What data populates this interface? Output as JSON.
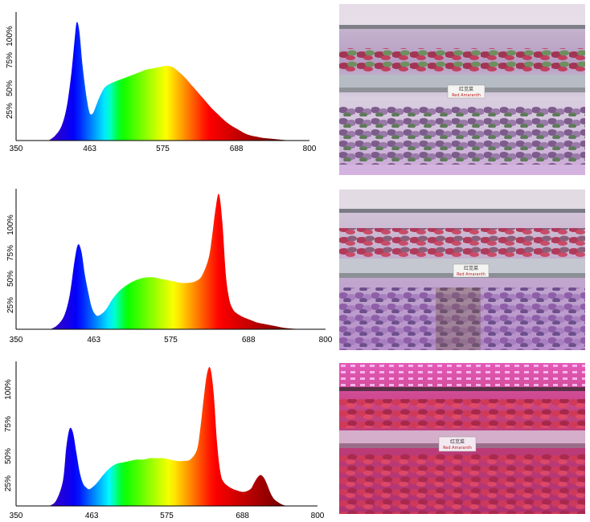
{
  "chart_data": [
    {
      "type": "area",
      "x_ticks": [
        350,
        463,
        575,
        688,
        800
      ],
      "y_ticks": [
        "25%",
        "50%",
        "75%",
        "100%"
      ],
      "xlim": [
        350,
        800
      ],
      "ylim": [
        0,
        100
      ],
      "x": [
        400,
        410,
        420,
        428,
        435,
        440,
        443,
        447,
        452,
        458,
        463,
        468,
        472,
        478,
        485,
        492,
        500,
        510,
        520,
        530,
        540,
        550,
        560,
        570,
        580,
        590,
        600,
        610,
        620,
        630,
        640,
        650,
        660,
        670,
        680,
        690,
        700,
        710,
        720,
        730,
        740,
        750,
        760,
        770,
        780
      ],
      "values": [
        0,
        4,
        12,
        28,
        55,
        82,
        95,
        88,
        60,
        35,
        22,
        22,
        27,
        35,
        42,
        45,
        47,
        49,
        51,
        53,
        55,
        57,
        58,
        59,
        60,
        59,
        55,
        50,
        44,
        38,
        32,
        26,
        21,
        16,
        12,
        9,
        6,
        4,
        3,
        2,
        1.5,
        1,
        0.5,
        0.2,
        0
      ]
    },
    {
      "type": "area",
      "x_ticks": [
        350,
        463,
        575,
        688,
        800
      ],
      "y_ticks": [
        "25%",
        "50%",
        "75%",
        "100%"
      ],
      "xlim": [
        350,
        800
      ],
      "ylim": [
        0,
        100
      ],
      "x": [
        400,
        410,
        420,
        428,
        435,
        440,
        445,
        450,
        455,
        460,
        465,
        470,
        480,
        490,
        500,
        510,
        520,
        530,
        540,
        550,
        560,
        570,
        580,
        590,
        600,
        610,
        620,
        630,
        635,
        640,
        645,
        650,
        655,
        660,
        665,
        670,
        680,
        690,
        700,
        710,
        720,
        730,
        740,
        750,
        760,
        775
      ],
      "values": [
        0,
        3,
        10,
        25,
        50,
        62,
        57,
        40,
        27,
        16,
        11,
        10,
        14,
        22,
        28,
        32,
        35,
        37,
        38,
        38,
        37,
        36,
        35,
        34,
        34,
        35,
        39,
        52,
        68,
        88,
        99,
        78,
        40,
        22,
        15,
        12,
        9,
        7,
        5,
        4,
        3,
        2,
        1,
        0.5,
        0.2,
        0
      ]
    },
    {
      "type": "area",
      "x_ticks": [
        350,
        463,
        575,
        688,
        800
      ],
      "y_ticks": [
        "25%",
        "50%",
        "75%",
        "100%"
      ],
      "xlim": [
        350,
        800
      ],
      "ylim": [
        0,
        100
      ],
      "x": [
        400,
        410,
        420,
        425,
        430,
        435,
        440,
        445,
        450,
        455,
        460,
        470,
        480,
        490,
        500,
        510,
        520,
        530,
        540,
        550,
        560,
        570,
        580,
        590,
        600,
        610,
        620,
        625,
        630,
        635,
        640,
        645,
        650,
        655,
        660,
        670,
        680,
        690,
        700,
        705,
        710,
        715,
        720,
        725,
        730,
        735,
        740,
        745,
        750,
        755
      ],
      "values": [
        0,
        4,
        18,
        42,
        55,
        52,
        38,
        24,
        16,
        13,
        12,
        16,
        22,
        27,
        30,
        31,
        32,
        33,
        33,
        34,
        34,
        34,
        33,
        32,
        32,
        33,
        40,
        55,
        76,
        94,
        98,
        80,
        45,
        24,
        17,
        13,
        11,
        10,
        12,
        16,
        20,
        22,
        20,
        15,
        9,
        5,
        3,
        1.5,
        0.5,
        0
      ]
    }
  ]
}
